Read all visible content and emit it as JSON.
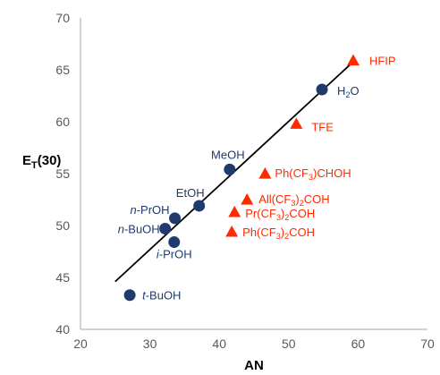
{
  "chart_data": {
    "type": "scatter",
    "xlabel": "AN",
    "ylabel": {
      "main": "E",
      "sub": "T",
      "suffix": "(30)"
    },
    "xlim": [
      20,
      70
    ],
    "ylim": [
      40,
      70
    ],
    "xticks": [
      "20",
      "30",
      "40",
      "50",
      "60",
      "70"
    ],
    "yticks": [
      "40",
      "45",
      "50",
      "55",
      "60",
      "65",
      "70"
    ],
    "grid": false,
    "trendline": {
      "x": [
        25,
        59.5
      ],
      "y": [
        44.6,
        65.9
      ]
    },
    "series": [
      {
        "marker": "circle",
        "color": "#1f3b6e",
        "points": [
          {
            "label": "t-BuOH",
            "parts": [
              {
                "t": "t",
                "i": true
              },
              {
                "t": "-BuOH"
              }
            ],
            "x": 27.1,
            "y": 43.3
          },
          {
            "label": "n-BuOH",
            "parts": [
              {
                "t": "n",
                "i": true
              },
              {
                "t": "-BuOH"
              }
            ],
            "x": 32.2,
            "y": 49.7
          },
          {
            "label": "i-PrOH",
            "parts": [
              {
                "t": "i",
                "i": true
              },
              {
                "t": "-PrOH"
              }
            ],
            "x": 33.5,
            "y": 48.4
          },
          {
            "label": "n-PrOH",
            "parts": [
              {
                "t": "n",
                "i": true
              },
              {
                "t": "-PrOH"
              }
            ],
            "x": 33.6,
            "y": 50.7
          },
          {
            "label": "EtOH",
            "parts": [
              {
                "t": "EtOH"
              }
            ],
            "x": 37.1,
            "y": 51.9
          },
          {
            "label": "MeOH",
            "parts": [
              {
                "t": "MeOH"
              }
            ],
            "x": 41.5,
            "y": 55.4
          },
          {
            "label": "H2O",
            "parts": [
              {
                "t": "H"
              },
              {
                "t": "2",
                "sub": true
              },
              {
                "t": "O"
              }
            ],
            "x": 54.8,
            "y": 63.1
          }
        ]
      },
      {
        "marker": "triangle",
        "color": "#ff2a00",
        "points": [
          {
            "label": "HFIP",
            "parts": [
              {
                "t": "HFIP"
              }
            ],
            "x": 59.3,
            "y": 65.9
          },
          {
            "label": "TFE",
            "parts": [
              {
                "t": "TFE"
              }
            ],
            "x": 51.1,
            "y": 59.8
          },
          {
            "label": "Ph(CF3)CHOH",
            "parts": [
              {
                "t": "Ph(CF"
              },
              {
                "t": "3",
                "sub": true
              },
              {
                "t": ")CHOH"
              }
            ],
            "x": 46.6,
            "y": 55.0
          },
          {
            "label": "All(CF3)2COH",
            "parts": [
              {
                "t": "All(CF"
              },
              {
                "t": "3",
                "sub": true
              },
              {
                "t": ")"
              },
              {
                "t": "2",
                "sub": true
              },
              {
                "t": "COH"
              }
            ],
            "x": 44.0,
            "y": 52.5
          },
          {
            "label": "Pr(CF3)2COH",
            "parts": [
              {
                "t": "Pr(CF"
              },
              {
                "t": "3",
                "sub": true
              },
              {
                "t": ")"
              },
              {
                "t": "2",
                "sub": true
              },
              {
                "t": "COH"
              }
            ],
            "x": 42.2,
            "y": 51.3
          },
          {
            "label": "Ph(CF3)2COH",
            "parts": [
              {
                "t": "Ph(CF"
              },
              {
                "t": "3",
                "sub": true
              },
              {
                "t": ")"
              },
              {
                "t": "2",
                "sub": true
              },
              {
                "t": "COH"
              }
            ],
            "x": 41.8,
            "y": 49.4
          }
        ]
      }
    ]
  }
}
